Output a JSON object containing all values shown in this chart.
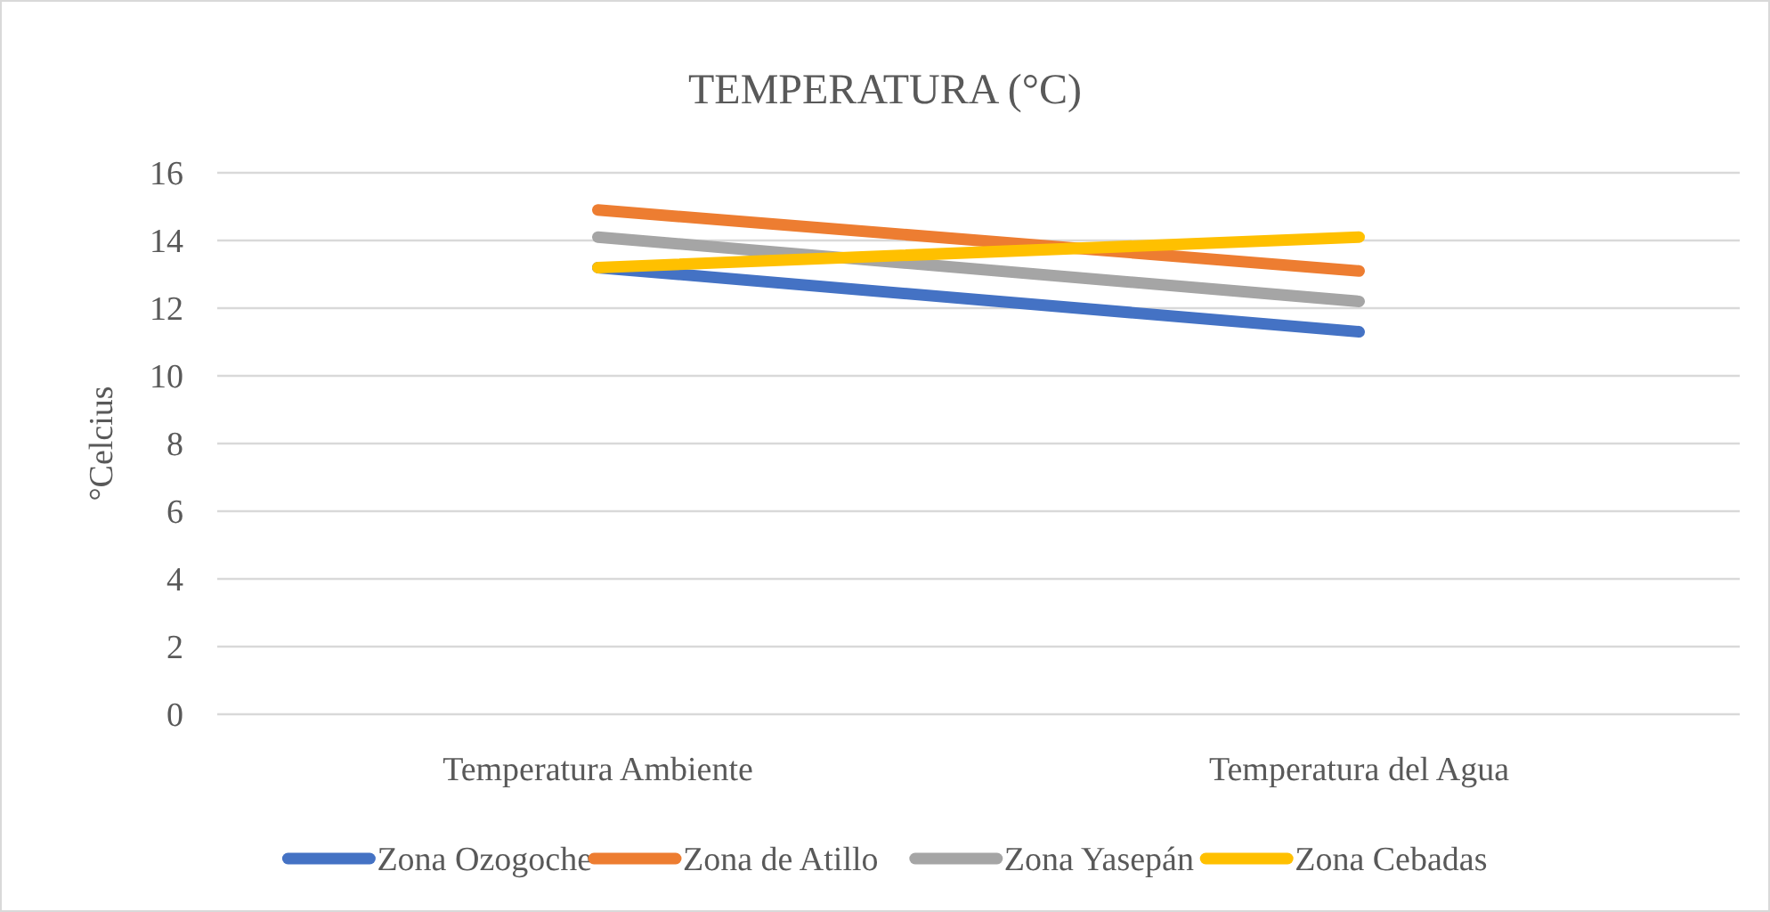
{
  "chart_data": {
    "type": "line",
    "title": "TEMPERATURA (°C)",
    "ylabel": "°Celcius",
    "categories": [
      "Temperatura Ambiente",
      "Temperatura del Agua"
    ],
    "series": [
      {
        "name": "Zona Ozogoche",
        "color": "#4472c4",
        "values": [
          13.2,
          11.3
        ]
      },
      {
        "name": "Zona de Atillo",
        "color": "#ed7d31",
        "values": [
          14.9,
          13.1
        ]
      },
      {
        "name": "Zona Yasepán",
        "color": "#a5a5a5",
        "values": [
          14.1,
          12.2
        ]
      },
      {
        "name": "Zona Cebadas",
        "color": "#ffc000",
        "values": [
          13.2,
          14.1
        ]
      }
    ],
    "ylim": [
      0,
      16
    ],
    "yticks": [
      0,
      2,
      4,
      6,
      8,
      10,
      12,
      14,
      16
    ],
    "grid": "y",
    "legend": "bottom",
    "marker": "none",
    "line_style": "solid"
  }
}
